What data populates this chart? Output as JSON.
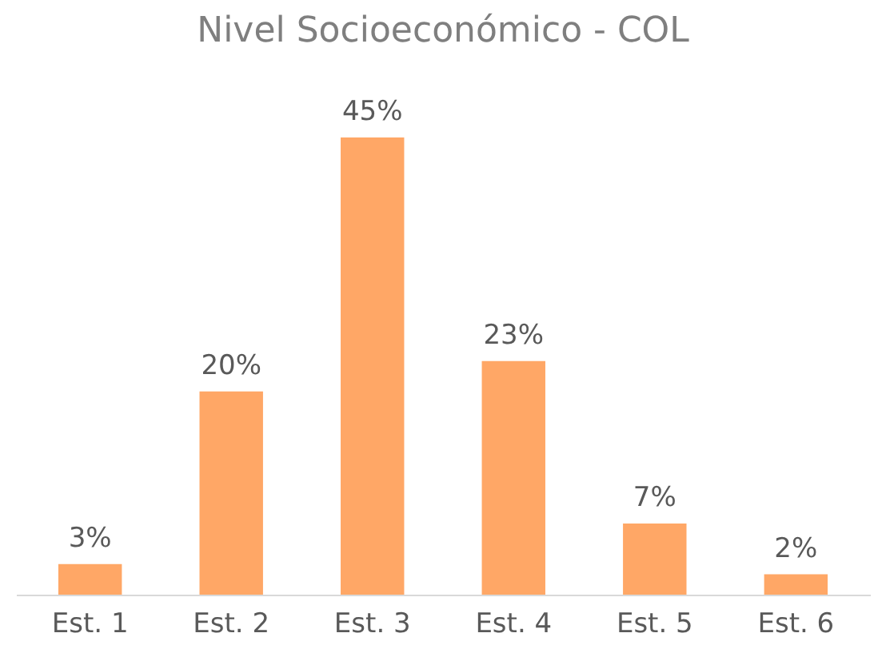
{
  "chart_data": {
    "type": "bar",
    "title": "Nivel Socioeconómico  - COL",
    "categories": [
      "Est. 1",
      "Est. 2",
      "Est. 3",
      "Est. 4",
      "Est. 5",
      "Est. 6"
    ],
    "values": [
      3,
      20,
      45,
      23,
      7,
      2
    ],
    "value_labels": [
      "3%",
      "20%",
      "45%",
      "23%",
      "7%",
      "2%"
    ],
    "color": "#ffa766",
    "grid": false
  }
}
